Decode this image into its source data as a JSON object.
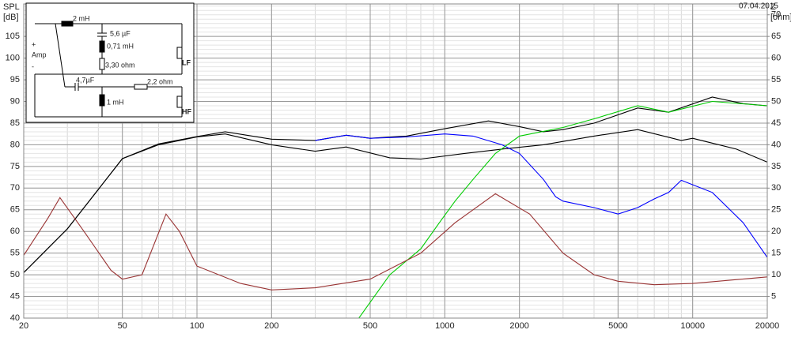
{
  "chart_data": {
    "type": "line",
    "date": "07.04.2015",
    "ylabel": [
      "SPL",
      "[dB]"
    ],
    "y2label": [
      "Z",
      "[ohm]"
    ],
    "xscale": "log",
    "grid": true,
    "xlim": [
      20,
      20000
    ],
    "xticks": [
      20,
      50,
      100,
      200,
      500,
      1000,
      2000,
      5000,
      10000,
      20000
    ],
    "ylim": [
      40,
      112.5
    ],
    "yticks": [
      40,
      45,
      50,
      55,
      60,
      65,
      70,
      75,
      80,
      85,
      90,
      95,
      100,
      105
    ],
    "y2lim": [
      0,
      72.5
    ],
    "y2ticks": [
      5,
      10,
      15,
      20,
      25,
      30,
      35,
      40,
      45,
      50,
      55,
      60,
      65,
      70
    ],
    "series": [
      {
        "color": "#000000",
        "x": [
          20,
          30,
          40,
          50,
          70,
          100,
          130,
          200,
          300,
          400,
          500,
          700,
          1000,
          1500,
          2000,
          2500,
          3000,
          4000,
          6000,
          8000,
          12000,
          16000,
          20000
        ],
        "values": [
          50.5,
          60.6,
          69.7,
          76.8,
          80.2,
          81.9,
          83,
          81.3,
          81,
          82.2,
          81.5,
          82,
          83.7,
          85.5,
          84.2,
          83,
          83.5,
          85,
          88.5,
          87.5,
          91,
          89.5,
          89
        ]
      },
      {
        "color": "#000000",
        "x": [
          20,
          30,
          40,
          50,
          70,
          100,
          130,
          200,
          300,
          400,
          600,
          800,
          1200,
          1700,
          2500,
          4000,
          6000,
          9000,
          10000,
          15000,
          20000
        ],
        "values": [
          50.5,
          60.6,
          69.7,
          76.8,
          80,
          81.8,
          82.5,
          80,
          78.5,
          79.5,
          77,
          76.7,
          78,
          79,
          80,
          82,
          83.5,
          81,
          81.5,
          79,
          76
        ]
      },
      {
        "color": "#0000ff",
        "x": [
          300,
          400,
          500,
          700,
          1000,
          1300,
          1700,
          2000,
          2500,
          2800,
          3000,
          4000,
          5000,
          6000,
          7000,
          8000,
          9000,
          12000,
          16000,
          20000
        ],
        "values": [
          81,
          82.2,
          81.5,
          81.8,
          82.5,
          82,
          80,
          78,
          72,
          68,
          67,
          65.5,
          64,
          65.5,
          67.5,
          69,
          71.8,
          69,
          62,
          54
        ]
      },
      {
        "color": "#00cc00",
        "x": [
          20,
          450,
          600,
          800,
          950,
          1100,
          1300,
          1600,
          2000,
          3000,
          4000,
          6000,
          8000,
          12000,
          20000
        ],
        "values": [
          40,
          40,
          50,
          56,
          62,
          67,
          72,
          78,
          82,
          84,
          86,
          89,
          87.5,
          90,
          89
        ]
      },
      {
        "color": "#993333",
        "axis": "y2",
        "x": [
          20,
          25,
          28,
          35,
          45,
          50,
          60,
          75,
          85,
          100,
          150,
          200,
          300,
          500,
          800,
          1100,
          1600,
          2200,
          3000,
          4000,
          5000,
          7000,
          10000,
          20000
        ],
        "values": [
          14.5,
          23,
          27.8,
          20,
          11,
          9,
          10,
          24,
          20,
          12,
          8,
          6.5,
          7,
          9,
          15,
          22,
          28.7,
          24,
          15,
          10,
          8.5,
          7.7,
          8,
          9.5
        ]
      }
    ]
  },
  "schematic": {
    "inductor_lf": "2 mH",
    "cap_shunt": "5,6 µF",
    "ind_shunt": "0,71 mH",
    "res_shunt": "3,30 ohm",
    "plus": "+",
    "amp": "Amp",
    "minus": "-",
    "cap_hf": "4,7µF",
    "res_hf": "2,2 ohm",
    "ind_hf": "1 mH",
    "lf": "LF",
    "hf": "HF"
  }
}
